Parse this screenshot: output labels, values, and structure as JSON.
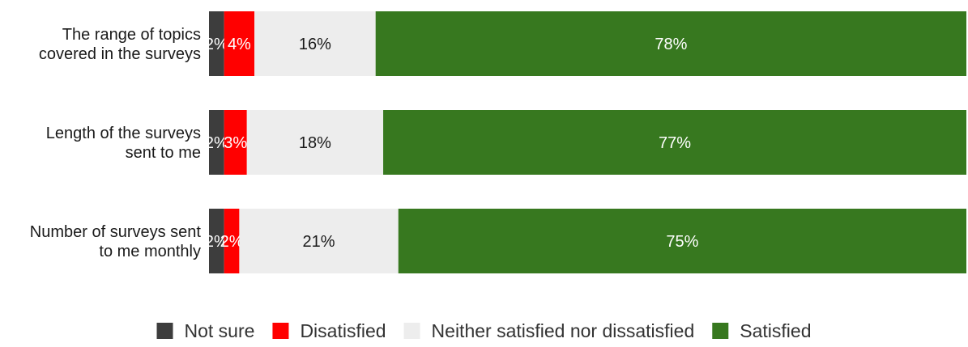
{
  "chart_data": {
    "type": "bar",
    "orientation": "horizontal",
    "stacked": true,
    "percent": true,
    "title": "",
    "xlabel": "",
    "ylabel": "",
    "grid": false,
    "legend_position": "bottom",
    "categories": [
      "The range of topics covered in the surveys",
      "Length of the surveys sent to me",
      "Number of surveys sent to me monthly"
    ],
    "category_lines": [
      [
        "The range of topics",
        "covered in the surveys"
      ],
      [
        "Length of the surveys",
        "sent to me"
      ],
      [
        "Number of surveys sent",
        "to me monthly"
      ]
    ],
    "series": [
      {
        "name": "Not sure",
        "values": [
          2,
          2,
          2
        ],
        "color": "#3d3d3d",
        "label_color": "#ffffff"
      },
      {
        "name": "Disatisfied",
        "values": [
          4,
          3,
          2
        ],
        "color": "#ff0000",
        "label_color": "#ffffff"
      },
      {
        "name": "Neither satisfied nor dissatisfied",
        "values": [
          16,
          18,
          21
        ],
        "color": "#ededed",
        "label_color": "#1a1a1a"
      },
      {
        "name": "Satisfied",
        "values": [
          78,
          77,
          75
        ],
        "color": "#37781f",
        "label_color": "#ffffff"
      }
    ],
    "value_suffix": "%"
  }
}
